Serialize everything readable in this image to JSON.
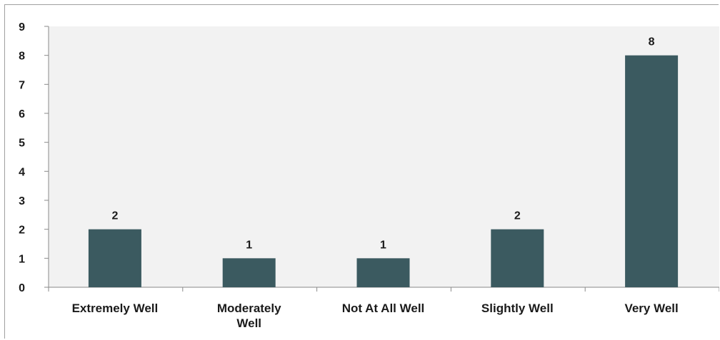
{
  "chart_data": {
    "type": "bar",
    "title": "",
    "xlabel": "",
    "ylabel": "",
    "categories": [
      "Extremely Well",
      "Moderately Well",
      "Not At All Well",
      "Slightly Well",
      "Very Well"
    ],
    "category_lines": [
      [
        "Extremely Well"
      ],
      [
        "Moderately",
        "Well"
      ],
      [
        "Not At All Well"
      ],
      [
        "Slightly Well"
      ],
      [
        "Very Well"
      ]
    ],
    "values": [
      2,
      1,
      1,
      2,
      8
    ],
    "data_labels": [
      "2",
      "1",
      "1",
      "2",
      "8"
    ],
    "ylim": [
      0,
      9
    ],
    "yticks": [
      "0",
      "1",
      "2",
      "3",
      "4",
      "5",
      "6",
      "7",
      "8",
      "9"
    ],
    "grid": false,
    "legend": "none",
    "colors": {
      "bar": "#3b5a60",
      "plot_background": "#f2f2f2",
      "axis": "#8a8a8a"
    }
  }
}
